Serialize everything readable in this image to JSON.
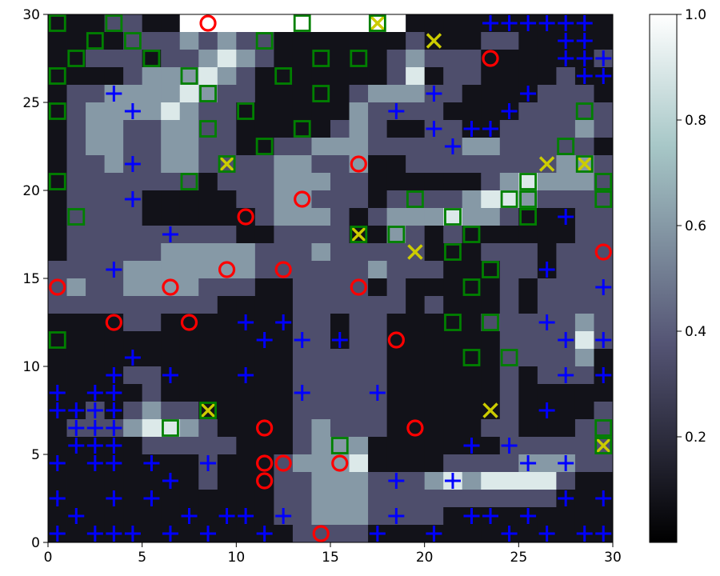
{
  "chart_data": {
    "type": "heatmap",
    "title": "",
    "xlabel": "",
    "ylabel": "",
    "xlim": [
      0,
      30
    ],
    "ylim": [
      0,
      30
    ],
    "x_ticks": [
      0,
      5,
      10,
      15,
      20,
      25,
      30
    ],
    "y_ticks": [
      0,
      5,
      10,
      15,
      20,
      25,
      30
    ],
    "colormap": "bone",
    "colorbar": {
      "range": [
        0.0,
        1.0
      ],
      "ticks": [
        0.2,
        0.4,
        0.6,
        0.8,
        1.0
      ]
    },
    "grid_size": [
      30,
      30
    ],
    "heatmap_rows_top_to_bottom": [
      "111221100000000000011111111111",
      "111122232322111111121112211111",
      "112221223432111111232221111112",
      "111123334321111111241221111211",
      "122333343221111123332211112221",
      "123333432211111132222111122222",
      "123322332211111232112211222232",
      "123322332211223332222233222221",
      "122322332222332231122222222332",
      "122222221222333221111112343332",
      "122221111122332221222234432222",
      "122221111112333212333433211122",
      "122222222211222211321211111122",
      "122222333332223222221112221222",
      "222233333332222223222111221222",
      "232233332221122221211111212222",
      "222222222111122222212111212222",
      "111122111111122122111112222232",
      "111111111111122122111111222242",
      "111111111111122222111111222231",
      "111122111111122222111111212221",
      "111112111111122222111111211111",
      "112123221111122222111111211112",
      "122234432111123222111112211122",
      "111112222211123331111111222222",
      "111111112111233341111222233322",
      "111111112111223332223434444211",
      "111111111111223332222222222111",
      "111111111111223332222111111111",
      "111111111111122221111111111111"
    ],
    "heatmap_level_values": {
      "1": 0.08,
      "2": 0.35,
      "3": 0.6,
      "4": 0.9
    },
    "series": [
      {
        "marker": "o",
        "color": "#ff0000",
        "points": [
          [
            8.5,
            29.5
          ],
          [
            23.5,
            27.5
          ],
          [
            16.5,
            21.5
          ],
          [
            13.5,
            19.5
          ],
          [
            10.5,
            18.5
          ],
          [
            29.5,
            16.5
          ],
          [
            9.5,
            15.5
          ],
          [
            12.5,
            15.5
          ],
          [
            0.5,
            14.5
          ],
          [
            6.5,
            14.5
          ],
          [
            16.5,
            14.5
          ],
          [
            3.5,
            12.5
          ],
          [
            7.5,
            12.5
          ],
          [
            18.5,
            11.5
          ],
          [
            11.5,
            6.5
          ],
          [
            19.5,
            6.5
          ],
          [
            11.5,
            4.5
          ],
          [
            12.5,
            4.5
          ],
          [
            15.5,
            4.5
          ],
          [
            11.5,
            3.5
          ],
          [
            14.5,
            0.5
          ]
        ]
      },
      {
        "marker": "x",
        "color": "#cccc00",
        "points": [
          [
            17.5,
            29.5
          ],
          [
            20.5,
            28.5
          ],
          [
            9.5,
            21.5
          ],
          [
            26.5,
            21.5
          ],
          [
            28.5,
            21.5
          ],
          [
            16.5,
            17.5
          ],
          [
            19.5,
            16.5
          ],
          [
            8.5,
            7.5
          ],
          [
            23.5,
            7.5
          ],
          [
            29.5,
            5.5
          ]
        ]
      },
      {
        "marker": "s",
        "color": "#008000",
        "points": [
          [
            0.5,
            29.5
          ],
          [
            3.5,
            29.5
          ],
          [
            13.5,
            29.5
          ],
          [
            17.5,
            29.5
          ],
          [
            2.5,
            28.5
          ],
          [
            4.5,
            28.5
          ],
          [
            11.5,
            28.5
          ],
          [
            1.5,
            27.5
          ],
          [
            5.5,
            27.5
          ],
          [
            14.5,
            27.5
          ],
          [
            16.5,
            27.5
          ],
          [
            0.5,
            26.5
          ],
          [
            7.5,
            26.5
          ],
          [
            12.5,
            26.5
          ],
          [
            8.5,
            25.5
          ],
          [
            14.5,
            25.5
          ],
          [
            0.5,
            24.5
          ],
          [
            10.5,
            24.5
          ],
          [
            28.5,
            24.5
          ],
          [
            8.5,
            23.5
          ],
          [
            13.5,
            23.5
          ],
          [
            11.5,
            22.5
          ],
          [
            27.5,
            22.5
          ],
          [
            9.5,
            21.5
          ],
          [
            28.5,
            21.5
          ],
          [
            0.5,
            20.5
          ],
          [
            7.5,
            20.5
          ],
          [
            25.5,
            20.5
          ],
          [
            29.5,
            20.5
          ],
          [
            19.5,
            19.5
          ],
          [
            24.5,
            19.5
          ],
          [
            25.5,
            19.5
          ],
          [
            29.5,
            19.5
          ],
          [
            1.5,
            18.5
          ],
          [
            21.5,
            18.5
          ],
          [
            25.5,
            18.5
          ],
          [
            16.5,
            17.5
          ],
          [
            18.5,
            17.5
          ],
          [
            22.5,
            17.5
          ],
          [
            21.5,
            16.5
          ],
          [
            23.5,
            15.5
          ],
          [
            22.5,
            14.5
          ],
          [
            21.5,
            12.5
          ],
          [
            23.5,
            12.5
          ],
          [
            0.5,
            11.5
          ],
          [
            22.5,
            10.5
          ],
          [
            24.5,
            10.5
          ],
          [
            8.5,
            7.5
          ],
          [
            6.5,
            6.5
          ],
          [
            29.5,
            6.5
          ],
          [
            15.5,
            5.5
          ],
          [
            29.5,
            5.5
          ]
        ]
      },
      {
        "marker": "+",
        "color": "#0000ff",
        "points": [
          [
            23.5,
            29.5
          ],
          [
            24.5,
            29.5
          ],
          [
            25.5,
            29.5
          ],
          [
            26.5,
            29.5
          ],
          [
            27.5,
            29.5
          ],
          [
            28.5,
            29.5
          ],
          [
            27.5,
            28.5
          ],
          [
            28.5,
            28.5
          ],
          [
            27.5,
            27.5
          ],
          [
            28.5,
            27.5
          ],
          [
            29.5,
            27.5
          ],
          [
            28.5,
            26.5
          ],
          [
            29.5,
            26.5
          ],
          [
            3.5,
            25.5
          ],
          [
            20.5,
            25.5
          ],
          [
            25.5,
            25.5
          ],
          [
            4.5,
            24.5
          ],
          [
            18.5,
            24.5
          ],
          [
            24.5,
            24.5
          ],
          [
            20.5,
            23.5
          ],
          [
            22.5,
            23.5
          ],
          [
            23.5,
            23.5
          ],
          [
            21.5,
            22.5
          ],
          [
            4.5,
            21.5
          ],
          [
            4.5,
            19.5
          ],
          [
            27.5,
            18.5
          ],
          [
            6.5,
            17.5
          ],
          [
            3.5,
            15.5
          ],
          [
            26.5,
            15.5
          ],
          [
            29.5,
            14.5
          ],
          [
            10.5,
            12.5
          ],
          [
            12.5,
            12.5
          ],
          [
            26.5,
            12.5
          ],
          [
            11.5,
            11.5
          ],
          [
            13.5,
            11.5
          ],
          [
            15.5,
            11.5
          ],
          [
            27.5,
            11.5
          ],
          [
            29.5,
            11.5
          ],
          [
            4.5,
            10.5
          ],
          [
            3.5,
            9.5
          ],
          [
            6.5,
            9.5
          ],
          [
            10.5,
            9.5
          ],
          [
            27.5,
            9.5
          ],
          [
            29.5,
            9.5
          ],
          [
            0.5,
            8.5
          ],
          [
            2.5,
            8.5
          ],
          [
            3.5,
            8.5
          ],
          [
            13.5,
            8.5
          ],
          [
            17.5,
            8.5
          ],
          [
            0.5,
            7.5
          ],
          [
            1.5,
            7.5
          ],
          [
            2.5,
            7.5
          ],
          [
            3.5,
            7.5
          ],
          [
            26.5,
            7.5
          ],
          [
            1.5,
            6.5
          ],
          [
            2.5,
            6.5
          ],
          [
            3.5,
            6.5
          ],
          [
            1.5,
            5.5
          ],
          [
            2.5,
            5.5
          ],
          [
            3.5,
            5.5
          ],
          [
            22.5,
            5.5
          ],
          [
            24.5,
            5.5
          ],
          [
            0.5,
            4.5
          ],
          [
            2.5,
            4.5
          ],
          [
            3.5,
            4.5
          ],
          [
            5.5,
            4.5
          ],
          [
            8.5,
            4.5
          ],
          [
            25.5,
            4.5
          ],
          [
            27.5,
            4.5
          ],
          [
            6.5,
            3.5
          ],
          [
            18.5,
            3.5
          ],
          [
            21.5,
            3.5
          ],
          [
            0.5,
            2.5
          ],
          [
            3.5,
            2.5
          ],
          [
            5.5,
            2.5
          ],
          [
            27.5,
            2.5
          ],
          [
            29.5,
            2.5
          ],
          [
            1.5,
            1.5
          ],
          [
            7.5,
            1.5
          ],
          [
            9.5,
            1.5
          ],
          [
            10.5,
            1.5
          ],
          [
            12.5,
            1.5
          ],
          [
            18.5,
            1.5
          ],
          [
            22.5,
            1.5
          ],
          [
            23.5,
            1.5
          ],
          [
            25.5,
            1.5
          ],
          [
            0.5,
            0.5
          ],
          [
            2.5,
            0.5
          ],
          [
            3.5,
            0.5
          ],
          [
            4.5,
            0.5
          ],
          [
            6.5,
            0.5
          ],
          [
            8.5,
            0.5
          ],
          [
            11.5,
            0.5
          ],
          [
            17.5,
            0.5
          ],
          [
            20.5,
            0.5
          ],
          [
            24.5,
            0.5
          ],
          [
            26.5,
            0.5
          ],
          [
            28.5,
            0.5
          ],
          [
            29.5,
            0.5
          ]
        ]
      }
    ]
  }
}
